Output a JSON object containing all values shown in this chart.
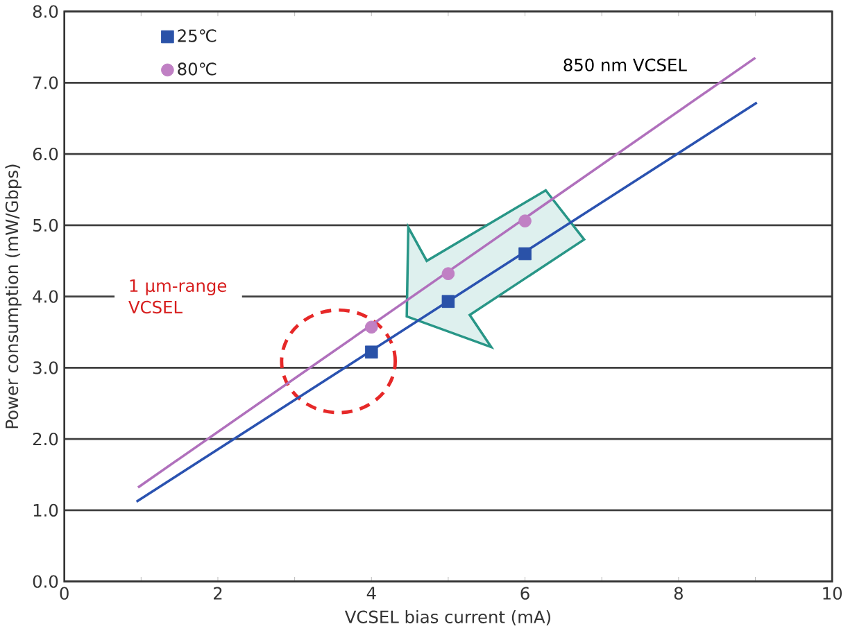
{
  "chart_data": {
    "type": "scatter",
    "xlabel": "VCSEL bias current (mA)",
    "ylabel": "Power consumption (mW/Gbps)",
    "series": [
      {
        "name": "25℃",
        "color": "#2a52a8",
        "marker": "square",
        "x": [
          4,
          5,
          6
        ],
        "values": [
          3.22,
          3.93,
          4.6
        ]
      },
      {
        "name": "80℃",
        "color": "#c080c4",
        "marker": "circle",
        "x": [
          4,
          5,
          6
        ],
        "values": [
          3.57,
          4.32,
          5.06
        ]
      },
      {
        "type": "line",
        "color": "#2a52b0",
        "x": [
          0.94,
          9.02
        ],
        "values": [
          1.12,
          6.72
        ]
      },
      {
        "type": "line",
        "color": "#b070bc",
        "x": [
          0.96,
          9.0
        ],
        "values": [
          1.32,
          7.35
        ]
      }
    ],
    "annotations": [
      "850 nm VCSEL",
      "1 μm-range VCSEL"
    ],
    "xlim": [
      0,
      10
    ],
    "ylim": [
      0,
      8
    ],
    "xticks": [
      0,
      {
        "value": 1,
        "label": null
      },
      2,
      {
        "value": 3,
        "label": null
      },
      4,
      {
        "value": 5,
        "label": null
      },
      6,
      {
        "value": 7,
        "label": null
      },
      8,
      {
        "value": 9,
        "label": null
      },
      10
    ],
    "yticks": [
      {
        "value": 0,
        "label": "0.0"
      },
      {
        "value": 1,
        "label": "1.0"
      },
      {
        "value": 2,
        "label": "2.0"
      },
      {
        "value": 3,
        "label": "3.0"
      },
      {
        "value": 4,
        "label": "4.0"
      },
      {
        "value": 5,
        "label": "5.0"
      },
      {
        "value": 6,
        "label": "6.0"
      },
      {
        "value": 7,
        "label": "7.0"
      },
      {
        "value": 8,
        "label": "8.0"
      }
    ],
    "grid": "y",
    "legend": "top left"
  }
}
